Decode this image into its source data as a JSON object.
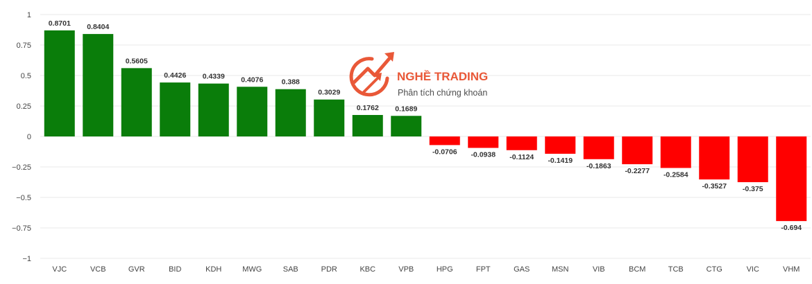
{
  "watermark": {
    "brand": "NGHỀ TRADING",
    "tagline": "Phân tích chứng khoán",
    "logo_icon": "rising-arrow-icon",
    "color": "#e8502e"
  },
  "colors": {
    "positive": "#0a7d0a",
    "negative": "#ff0000",
    "grid": "#e8e8e8"
  },
  "chart_data": {
    "type": "bar",
    "categories": [
      "VJC",
      "VCB",
      "GVR",
      "BID",
      "KDH",
      "MWG",
      "SAB",
      "PDR",
      "KBC",
      "VPB",
      "HPG",
      "FPT",
      "GAS",
      "MSN",
      "VIB",
      "BCM",
      "TCB",
      "CTG",
      "VIC",
      "VHM"
    ],
    "values": [
      0.8701,
      0.8404,
      0.5605,
      0.4426,
      0.4339,
      0.4076,
      0.388,
      0.3029,
      0.1762,
      0.1689,
      -0.0706,
      -0.0938,
      -0.1124,
      -0.1419,
      -0.1863,
      -0.2277,
      -0.2584,
      -0.3527,
      -0.375,
      -0.694
    ],
    "data_labels": [
      "0.8701",
      "0.8404",
      "0.5605",
      "0.4426",
      "0.4339",
      "0.4076",
      "0.388",
      "0.3029",
      "0.1762",
      "0.1689",
      "-0.0706",
      "-0.0938",
      "-0.1124",
      "-0.1419",
      "-0.1863",
      "-0.2277",
      "-0.2584",
      "-0.3527",
      "-0.375",
      "-0.694"
    ],
    "ylim": [
      -1,
      1
    ],
    "yticks": [
      1,
      0.75,
      0.5,
      0.25,
      0,
      -0.25,
      -0.5,
      -0.75,
      -1
    ],
    "ytick_labels": [
      "1",
      "0.75",
      "0.5",
      "0.25",
      "0",
      "−0.25",
      "−0.5",
      "−0.75",
      "−1"
    ],
    "grid": true,
    "title": "",
    "xlabel": "",
    "ylabel": ""
  }
}
